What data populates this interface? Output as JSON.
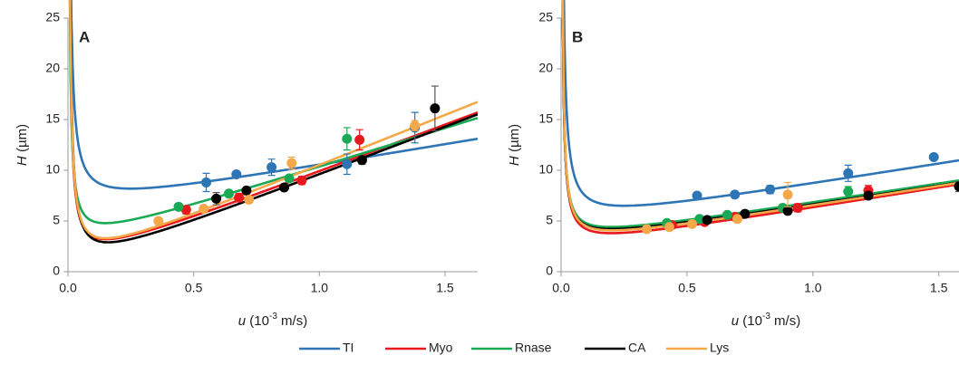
{
  "chart_data": [
    {
      "type": "scatter",
      "title": "A",
      "legend": "bottom",
      "x_label": {
        "var": "u",
        "text": " (10",
        "sup": "-3",
        "unit": " m/s)"
      },
      "y_label": {
        "var": "H",
        "unit": " (µm)"
      },
      "xlim": [
        0,
        1.63
      ],
      "ylim": [
        0,
        25
      ],
      "xticks": [
        {
          "value": 0,
          "label": "0.0"
        },
        0.5,
        {
          "value": 1,
          "label": "1.0"
        },
        1.5
      ],
      "yticks": [
        0,
        5,
        10,
        15,
        20,
        25
      ],
      "series": [
        {
          "name": "TI",
          "color": "#2e75b6",
          "x": [
            0.55,
            0.67,
            0.81,
            1.11,
            1.38
          ],
          "values": [
            8.8,
            9.6,
            10.3,
            10.6,
            14.2
          ],
          "errors": [
            0.9,
            0.3,
            0.8,
            1.0,
            1.5
          ],
          "fit": {
            "a": 6.1,
            "b": 0.26,
            "c": 4.2
          }
        },
        {
          "name": "Myo",
          "color": "#e8191c",
          "x": [
            0.47,
            0.68,
            0.93,
            1.16
          ],
          "values": [
            6.1,
            7.3,
            9.0,
            13.0
          ],
          "errors": [
            0.4,
            0.4,
            0.4,
            1.0
          ],
          "fit": {
            "a": 0.41,
            "b": 0.21,
            "c": 9.3
          }
        },
        {
          "name": "Rnase",
          "color": "#1aaa55",
          "x": [
            0.44,
            0.64,
            0.88,
            1.11
          ],
          "values": [
            6.4,
            7.7,
            9.2,
            13.1
          ],
          "errors": [
            0.3,
            0.3,
            0.3,
            1.1
          ],
          "fit": {
            "a": 2.5,
            "b": 0.17,
            "c": 7.7
          }
        },
        {
          "name": "CA",
          "color": "#000000",
          "x": [
            0.59,
            0.71,
            0.86,
            1.17,
            1.46
          ],
          "values": [
            7.2,
            8.0,
            8.3,
            11.0,
            16.1
          ],
          "errors": [
            0.6,
            0.3,
            0.3,
            0.4,
            2.2
          ],
          "fit": {
            "a": -0.12,
            "b": 0.24,
            "c": 9.5
          }
        },
        {
          "name": "Lys",
          "color": "#f4a84a",
          "x": [
            0.36,
            0.54,
            0.72,
            0.89,
            1.38
          ],
          "values": [
            5.0,
            6.2,
            7.1,
            10.7,
            14.4
          ],
          "errors": [
            0.3,
            0.3,
            0.3,
            0.6,
            0.5
          ],
          "fit": {
            "a": 0.3,
            "b": 0.225,
            "c": 10
          }
        }
      ]
    },
    {
      "type": "scatter",
      "title": "B",
      "x_label": {
        "var": "u",
        "text": " (10",
        "sup": "-3",
        "unit": " m/s)"
      },
      "y_label": {
        "var": "H",
        "unit": " (µm)"
      },
      "xlim": [
        0,
        1.58
      ],
      "ylim": [
        0,
        25
      ],
      "xticks": [
        {
          "value": 0,
          "label": "0.0"
        },
        0.5,
        {
          "value": 1,
          "label": "1.0"
        },
        1.5
      ],
      "yticks": [
        0,
        5,
        10,
        15,
        20,
        25
      ],
      "series": [
        {
          "color": "#2e75b6",
          "x": [
            0.54,
            0.69,
            0.83,
            1.14,
            1.48
          ],
          "values": [
            7.5,
            7.6,
            8.1,
            9.7,
            11.3
          ],
          "errors": [
            0.2,
            0.2,
            0.4,
            0.8,
            0.2
          ],
          "fit": {
            "a": 4.5,
            "b": 0.25,
            "c": 4.0
          }
        },
        {
          "color": "#e8191c",
          "x": [
            0.44,
            0.57,
            0.69,
            0.94,
            1.22
          ],
          "values": [
            4.6,
            4.9,
            5.4,
            6.3,
            8.0
          ],
          "errors": [
            0.2,
            0.2,
            0.2,
            0.4,
            0.5
          ],
          "fit": {
            "a": 2.2,
            "b": 0.16,
            "c": 4.0
          }
        },
        {
          "color": "#1aaa55",
          "x": [
            0.42,
            0.55,
            0.66,
            0.88,
            1.14
          ],
          "values": [
            4.8,
            5.2,
            5.6,
            6.3,
            7.9
          ],
          "errors": [
            0.2,
            0.2,
            0.2,
            0.3,
            0.5
          ],
          "fit": {
            "a": 2.9,
            "b": 0.15,
            "c": 3.8
          }
        },
        {
          "color": "#000000",
          "x": [
            0.58,
            0.73,
            0.9,
            1.22,
            1.58
          ],
          "values": [
            5.1,
            5.7,
            6.0,
            7.5,
            8.4
          ],
          "errors": [
            0.2,
            0.2,
            0.3,
            0.3,
            0.5
          ],
          "fit": {
            "a": 2.7,
            "b": 0.15,
            "c": 3.8
          }
        },
        {
          "color": "#f4a84a",
          "x": [
            0.34,
            0.43,
            0.52,
            0.7,
            0.9
          ],
          "values": [
            4.2,
            4.4,
            4.7,
            5.2,
            7.6
          ],
          "errors": [
            0.2,
            0.2,
            0.2,
            0.3,
            1.2
          ],
          "fit": {
            "a": 2.5,
            "b": 0.16,
            "c": 3.9
          }
        }
      ]
    }
  ]
}
